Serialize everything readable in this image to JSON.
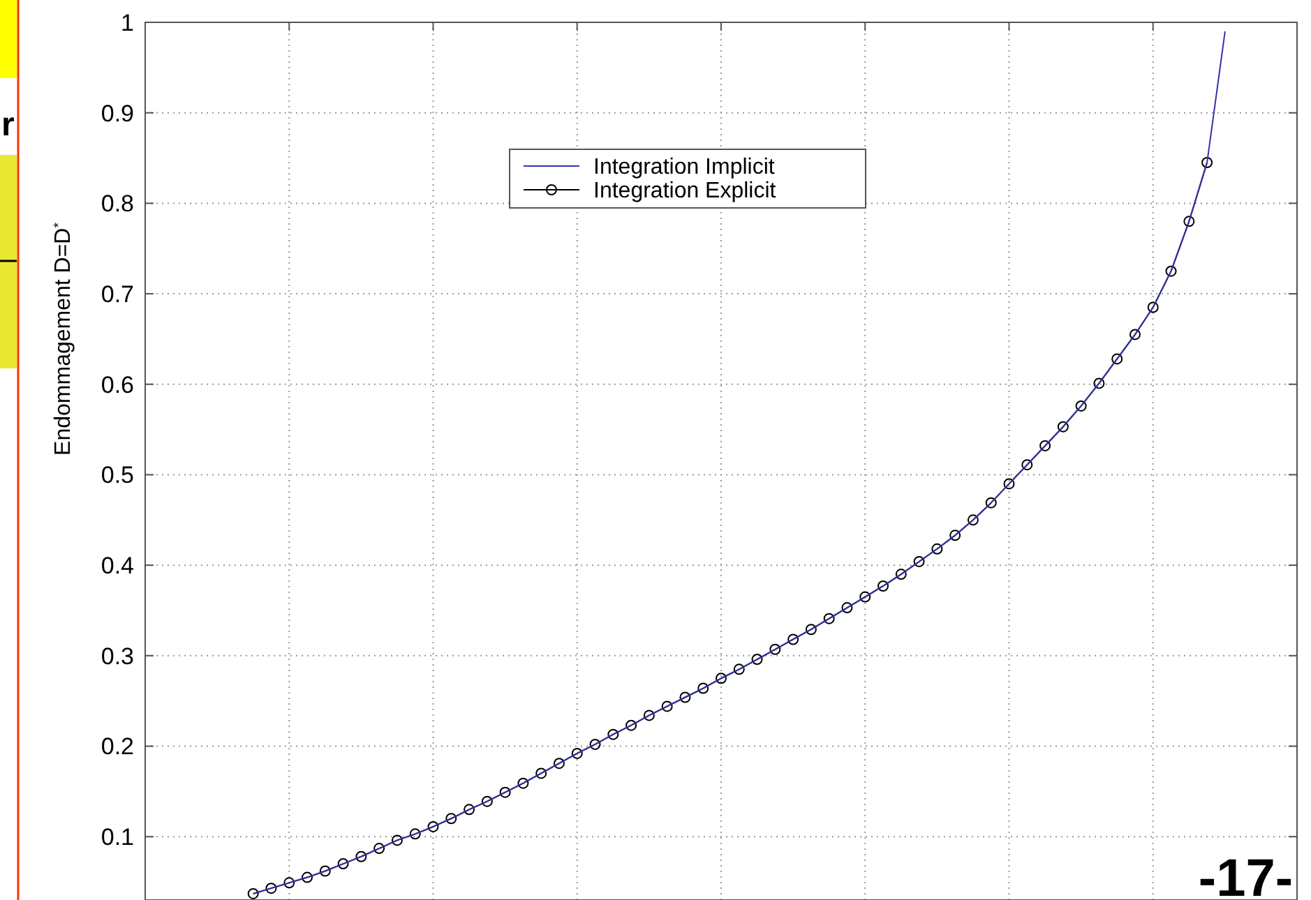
{
  "chart_data": {
    "type": "line",
    "ylabel": "Endommagement D=D$^{*}$",
    "categories": [
      null,
      null,
      null,
      null,
      null,
      null,
      null,
      null,
      null,
      null,
      null,
      null,
      null,
      null,
      null,
      null,
      null,
      null,
      null,
      null,
      null,
      null,
      null,
      null,
      null,
      null,
      null,
      null,
      null,
      null,
      null,
      null,
      null,
      null,
      null,
      null,
      null,
      null,
      null,
      null,
      null,
      null,
      null,
      null,
      null,
      null,
      null,
      null,
      null,
      null,
      null,
      null,
      null,
      null,
      null,
      null,
      null,
      null,
      null,
      null
    ],
    "ylim": [
      0.03,
      1
    ],
    "yticks": [
      0.1,
      0.2,
      0.3,
      0.4,
      0.5,
      0.6,
      0.7,
      0.8,
      0.9,
      1
    ],
    "grid": true,
    "legend": "top",
    "series": [
      {
        "name": "Integration Implicit",
        "color": "#3333aa",
        "marker": "none",
        "values": [
          null,
          null,
          null,
          null,
          null,
          0.037,
          0.043,
          0.049,
          0.055,
          0.062,
          0.07,
          0.078,
          0.087,
          0.096,
          0.103,
          0.111,
          0.12,
          0.13,
          0.139,
          0.149,
          0.159,
          0.17,
          0.181,
          0.192,
          0.202,
          0.213,
          0.223,
          0.234,
          0.244,
          0.254,
          0.264,
          0.275,
          0.285,
          0.296,
          0.307,
          0.318,
          0.329,
          0.341,
          0.353,
          0.365,
          0.377,
          0.39,
          0.404,
          0.418,
          0.433,
          0.45,
          0.469,
          0.49,
          0.511,
          0.532,
          0.553,
          0.576,
          0.601,
          0.628,
          0.655,
          0.685,
          0.725,
          0.78,
          0.845,
          0.99
        ]
      },
      {
        "name": "Integration Explicit",
        "color": "#000000",
        "marker": "circle",
        "values": [
          null,
          null,
          null,
          null,
          null,
          0.037,
          0.043,
          0.049,
          0.055,
          0.062,
          0.07,
          0.078,
          0.087,
          0.096,
          0.103,
          0.111,
          0.12,
          0.13,
          0.139,
          0.149,
          0.159,
          0.17,
          0.181,
          0.192,
          0.202,
          0.213,
          0.223,
          0.234,
          0.244,
          0.254,
          0.264,
          0.275,
          0.285,
          0.296,
          0.307,
          0.318,
          0.329,
          0.341,
          0.353,
          0.365,
          0.377,
          0.39,
          0.404,
          0.418,
          0.433,
          0.45,
          0.469,
          0.49,
          0.511,
          0.532,
          0.553,
          0.576,
          0.601,
          0.628,
          0.655,
          0.685,
          0.725,
          0.78,
          0.845,
          null
        ]
      }
    ],
    "annotations": [
      "-17-",
      "r"
    ]
  }
}
